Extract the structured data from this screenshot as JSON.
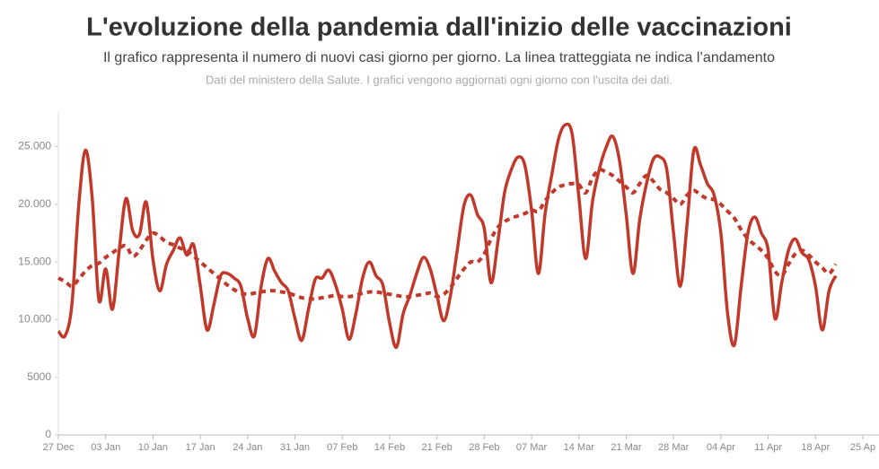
{
  "chart_data": {
    "type": "line",
    "title": "L'evoluzione della pandemia dall'inizio delle vaccinazioni",
    "subtitle": "Il grafico rappresenta il numero di nuovi casi giorno per giorno. La linea tratteggiata ne indica l’andamento",
    "source": "Dati del ministero della Salute. I grafici vengono aggiornati ogni giorno con l'uscita dei dati.",
    "categories": [
      "27 Dec",
      null,
      null,
      null,
      null,
      null,
      null,
      "03 Jan",
      null,
      null,
      null,
      null,
      null,
      null,
      "10 Jan",
      null,
      null,
      null,
      null,
      null,
      null,
      "17 Jan",
      null,
      null,
      null,
      null,
      null,
      null,
      "24 Jan",
      null,
      null,
      null,
      null,
      null,
      null,
      "31 Jan",
      null,
      null,
      null,
      null,
      null,
      null,
      "07 Feb",
      null,
      null,
      null,
      null,
      null,
      null,
      "14 Feb",
      null,
      null,
      null,
      null,
      null,
      null,
      "21 Feb",
      null,
      null,
      null,
      null,
      null,
      null,
      "28 Feb",
      null,
      null,
      null,
      null,
      null,
      null,
      "07 Mar",
      null,
      null,
      null,
      null,
      null,
      null,
      "14 Mar",
      null,
      null,
      null,
      null,
      null,
      null,
      "21 Mar",
      null,
      null,
      null,
      null,
      null,
      null,
      "28 Mar",
      null,
      null,
      null,
      null,
      null,
      null,
      "04 Apr",
      null,
      null,
      null,
      null,
      null,
      null,
      "11 Apr",
      null,
      null,
      null,
      null,
      null,
      null,
      "18 Apr",
      null,
      null,
      null,
      null,
      null,
      null,
      "25 Ap"
    ],
    "series": [
      {
        "color": "#c0392b",
        "dashed": false,
        "values": [
          9000,
          8600,
          11300,
          19800,
          24700,
          20600,
          11700,
          14400,
          10900,
          16000,
          20500,
          17700,
          17400,
          20200,
          15200,
          12500,
          14800,
          16000,
          17100,
          15600,
          16500,
          12900,
          9100,
          11300,
          13800,
          14000,
          13600,
          12900,
          10100,
          8600,
          12900,
          15300,
          14200,
          13200,
          12500,
          10100,
          8200,
          10900,
          13500,
          13600,
          14300,
          13000,
          10900,
          8300,
          10500,
          13600,
          15000,
          13800,
          13000,
          9700,
          7600,
          10500,
          12100,
          14000,
          15400,
          14400,
          12100,
          9900,
          12100,
          16000,
          19900,
          20800,
          19100,
          17900,
          13200,
          16700,
          21000,
          23000,
          24100,
          23400,
          19500,
          14000,
          19200,
          22600,
          25700,
          26900,
          26100,
          20600,
          15300,
          20200,
          23000,
          24900,
          25900,
          23800,
          19100,
          14000,
          18700,
          21800,
          23900,
          24100,
          23000,
          17500,
          12900,
          18300,
          24700,
          23400,
          21800,
          20800,
          17500,
          10500,
          7800,
          12900,
          17500,
          18900,
          17500,
          16000,
          10100,
          13200,
          16000,
          17000,
          15800,
          15200,
          12900,
          9100,
          12500,
          13800,
          null,
          null,
          null,
          null
        ]
      },
      {
        "color": "#c0392b",
        "dashed": true,
        "values": [
          13600,
          13300,
          12900,
          13500,
          14200,
          14700,
          14900,
          15400,
          15800,
          16200,
          16400,
          15500,
          16000,
          16900,
          17500,
          17200,
          16700,
          16500,
          16200,
          16000,
          15500,
          15000,
          14500,
          14000,
          13500,
          13000,
          12600,
          12300,
          12200,
          12300,
          12400,
          12500,
          12500,
          12400,
          12300,
          12100,
          11900,
          11800,
          11800,
          11900,
          12000,
          12100,
          12000,
          12000,
          12100,
          12300,
          12400,
          12400,
          12300,
          12200,
          12100,
          12000,
          12000,
          12100,
          12200,
          12300,
          12000,
          12200,
          12800,
          13600,
          14400,
          15000,
          15000,
          15700,
          17000,
          18000,
          18500,
          18800,
          19000,
          19200,
          19500,
          19400,
          20300,
          21000,
          21500,
          21700,
          21800,
          21700,
          21000,
          22300,
          23000,
          22800,
          22500,
          22000,
          21500,
          21000,
          21800,
          22500,
          22000,
          21300,
          21000,
          20500,
          20000,
          20800,
          21200,
          20800,
          20500,
          20400,
          20000,
          19400,
          18800,
          17800,
          17000,
          16500,
          16000,
          15300,
          14200,
          13800,
          14800,
          15700,
          16000,
          15600,
          15000,
          14500,
          14000,
          14800,
          null,
          null,
          null,
          null
        ]
      }
    ],
    "ylim": [
      0,
      28000
    ],
    "yticks": [
      0,
      5000,
      {
        "value": 10000,
        "label": "10.000"
      },
      {
        "value": 15000,
        "label": "15.000"
      },
      {
        "value": 20000,
        "label": "20.000"
      },
      {
        "value": 25000,
        "label": "25.000"
      }
    ],
    "grid": false
  }
}
